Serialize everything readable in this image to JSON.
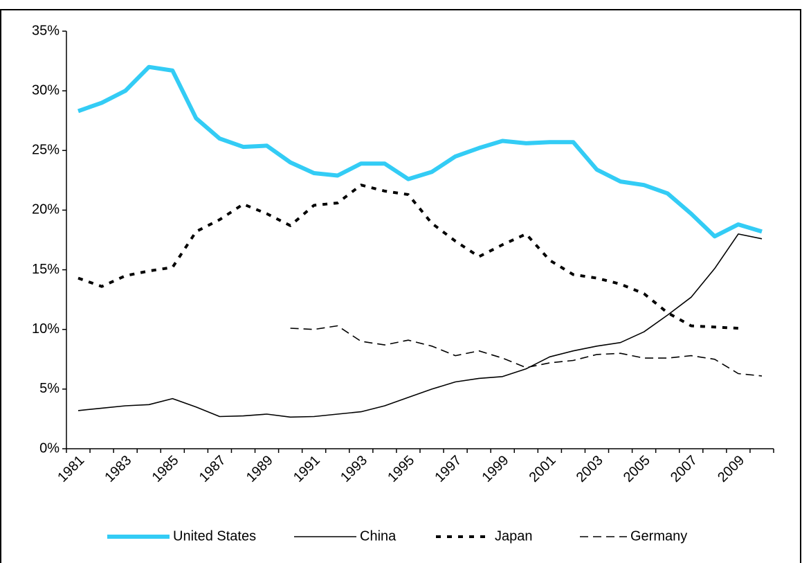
{
  "chart_data": {
    "type": "line",
    "categories": [
      "1981",
      null,
      "1983",
      null,
      "1985",
      null,
      "1987",
      null,
      "1989",
      null,
      "1991",
      null,
      "1993",
      null,
      "1995",
      null,
      "1997",
      null,
      "1999",
      null,
      "2001",
      null,
      "2003",
      null,
      "2005",
      null,
      "2007",
      null,
      "2009",
      null
    ],
    "series": [
      {
        "name": "United States",
        "color": "#33ccf5",
        "style": "thick",
        "values": [
          28.3,
          29.0,
          30.0,
          32.0,
          31.7,
          27.7,
          26.0,
          25.3,
          25.4,
          24.0,
          23.1,
          22.9,
          23.9,
          23.9,
          22.6,
          23.2,
          24.5,
          25.2,
          25.8,
          25.6,
          25.7,
          25.7,
          23.4,
          22.4,
          22.1,
          21.4,
          19.7,
          17.8,
          18.8,
          18.2
        ]
      },
      {
        "name": "China",
        "color": "#000000",
        "style": "solid",
        "values": [
          3.2,
          3.4,
          3.6,
          3.7,
          4.2,
          3.5,
          2.7,
          2.75,
          2.9,
          2.65,
          2.7,
          2.9,
          3.1,
          3.6,
          4.3,
          5.0,
          5.6,
          5.9,
          6.05,
          6.7,
          7.7,
          8.2,
          8.6,
          8.9,
          9.8,
          11.2,
          12.7,
          15.1,
          18.0,
          17.6
        ]
      },
      {
        "name": "Japan",
        "color": "#000000",
        "style": "dotted",
        "values": [
          14.3,
          13.6,
          14.5,
          14.9,
          15.2,
          18.2,
          19.2,
          20.5,
          19.7,
          18.7,
          20.4,
          20.6,
          22.1,
          21.6,
          21.3,
          18.9,
          17.4,
          16.1,
          17.1,
          18.0,
          15.8,
          14.6,
          14.3,
          13.8,
          13.0,
          11.4,
          10.3,
          10.2,
          10.1,
          null
        ]
      },
      {
        "name": "Germany",
        "color": "#000000",
        "style": "dashed",
        "values": [
          null,
          null,
          null,
          null,
          null,
          null,
          null,
          null,
          null,
          10.1,
          10.0,
          10.3,
          9.0,
          8.7,
          9.1,
          8.6,
          7.8,
          8.2,
          7.6,
          6.8,
          7.2,
          7.4,
          7.9,
          8.0,
          7.6,
          7.6,
          7.8,
          7.5,
          6.3,
          6.1
        ]
      }
    ],
    "ylim": [
      0,
      35
    ],
    "yticks": [
      {
        "value": 0,
        "label": "0%"
      },
      {
        "value": 5,
        "label": "5%"
      },
      {
        "value": 10,
        "label": "10%"
      },
      {
        "value": 15,
        "label": "15%"
      },
      {
        "value": 20,
        "label": "20%"
      },
      {
        "value": 25,
        "label": "25%"
      },
      {
        "value": 30,
        "label": "30%"
      },
      {
        "value": 35,
        "label": "35%"
      }
    ],
    "legend": "bottom"
  }
}
